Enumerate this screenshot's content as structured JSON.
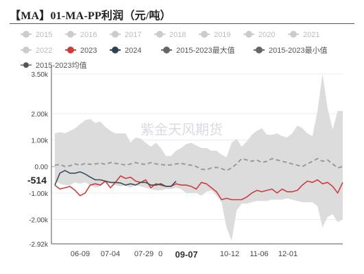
{
  "title": "【MA】01-MA-PP利润（元/吨）",
  "watermark": "紫金天风期货",
  "chart_data": {
    "type": "line",
    "title": "【MA】01-MA-PP利润（元/吨）",
    "ylim": [
      -2920,
      3600
    ],
    "yticks": [
      "3.50k",
      "2.00k",
      "1.00k",
      "0.00",
      "-1.00k",
      "-2.00k",
      "-2.92k"
    ],
    "xticks": [
      "06-09",
      "07-04",
      "07-29",
      "0",
      "09-07",
      "10-12",
      "11-06",
      "12-01"
    ],
    "highlight_x": "09-07",
    "current_value_label": "-514",
    "legend": [
      {
        "name": "2015",
        "color": "#cccccc",
        "marker": "circle",
        "active": false
      },
      {
        "name": "2016",
        "color": "#cccccc",
        "marker": "circle",
        "active": false
      },
      {
        "name": "2017",
        "color": "#cccccc",
        "marker": "circle",
        "active": false
      },
      {
        "name": "2018",
        "color": "#cccccc",
        "marker": "circle",
        "active": false
      },
      {
        "name": "2019",
        "color": "#cccccc",
        "marker": "circle",
        "active": false
      },
      {
        "name": "2020",
        "color": "#cccccc",
        "marker": "circle",
        "active": false
      },
      {
        "name": "2021",
        "color": "#cccccc",
        "marker": "circle",
        "active": false
      },
      {
        "name": "2022",
        "color": "#cccccc",
        "marker": "circle",
        "active": false
      },
      {
        "name": "2023",
        "color": "#d03a3a",
        "marker": "circle",
        "active": true
      },
      {
        "name": "2024",
        "color": "#2f4050",
        "marker": "circle",
        "active": true
      },
      {
        "name": "2015-2023最大值",
        "color": "#666666",
        "marker": "circle",
        "active": true
      },
      {
        "name": "2015-2023最小值",
        "color": "#666666",
        "marker": "circle",
        "active": true
      },
      {
        "name": "2015-2023均值",
        "color": "#888888",
        "marker": "dash",
        "active": true
      }
    ],
    "colors": {
      "s2023": "#d03a3a",
      "s2024": "#3d4a57",
      "band": "#dcdcdc",
      "mean": "#999999"
    },
    "series": [
      {
        "name": "2015-2023最大值",
        "values": [
          1250,
          1300,
          1250,
          1350,
          1450,
          1600,
          1750,
          1800,
          1650,
          1700,
          1500,
          1350,
          1250,
          1250,
          1250,
          900,
          1100,
          1050,
          900,
          750,
          900,
          700,
          400,
          400,
          600,
          700,
          850,
          900,
          800,
          700,
          700,
          600,
          600,
          450,
          350,
          900,
          1050,
          750,
          950,
          1200,
          1350,
          1450,
          1200,
          1200,
          1250,
          1150,
          1100,
          1250,
          1550,
          1450,
          1250,
          1150,
          2100,
          3500,
          2200,
          1400,
          2100,
          2100
        ]
      },
      {
        "name": "2015-2023最小值",
        "values": [
          -550,
          -650,
          -700,
          -700,
          -600,
          -650,
          -600,
          -700,
          -800,
          -750,
          -600,
          -650,
          -700,
          -750,
          -700,
          -800,
          -700,
          -750,
          -800,
          -850,
          -900,
          -900,
          -850,
          -850,
          -800,
          -850,
          -1000,
          -1000,
          -1000,
          -1100,
          -950,
          -900,
          -1100,
          -1350,
          -2300,
          -2800,
          -1650,
          -1400,
          -1400,
          -1350,
          -1300,
          -1300,
          -1300,
          -1250,
          -1250,
          -1250,
          -1200,
          -1250,
          -1300,
          -1350,
          -1350,
          -1350,
          -1500,
          -2300,
          -1900,
          -1800,
          -2100,
          -2000
        ]
      },
      {
        "name": "2015-2023均值",
        "values": [
          50,
          80,
          0,
          30,
          100,
          50,
          120,
          80,
          100,
          130,
          80,
          150,
          120,
          100,
          50,
          100,
          150,
          100,
          80,
          150,
          100,
          80,
          50,
          60,
          100,
          120,
          80,
          50,
          0,
          -100,
          -120,
          -50,
          -30,
          -80,
          -150,
          -50,
          100,
          300,
          250,
          200,
          250,
          150,
          200,
          300,
          250,
          200,
          150,
          100,
          50,
          0,
          100,
          200,
          300,
          200,
          250,
          100,
          -50,
          0
        ]
      },
      {
        "name": "2023",
        "values": [
          -700,
          -850,
          -800,
          -750,
          -900,
          -1100,
          -1000,
          -700,
          -650,
          -700,
          -550,
          -800,
          -600,
          -350,
          -450,
          -400,
          -550,
          -600,
          -500,
          -800,
          -650,
          -700,
          -750,
          -750,
          -650,
          -700,
          -700,
          -750,
          -850,
          -600,
          -650,
          -800,
          -950,
          -1250,
          -1200,
          -1250,
          -1250,
          -1250,
          -1150,
          -1000,
          -900,
          -950,
          -900,
          -850,
          -1000,
          -850,
          -950,
          -950,
          -900,
          -700,
          -550,
          -600,
          -500,
          -650,
          -600,
          -750,
          -1000,
          -600
        ]
      },
      {
        "name": "2024",
        "values": [
          -700,
          -250,
          -150,
          -250,
          -250,
          -200,
          -280,
          -400,
          -500,
          -500,
          -550,
          -600,
          -600,
          -620,
          -700,
          -650,
          -700,
          -600,
          -600,
          -700,
          -700,
          -650,
          -750,
          -750,
          -550
        ]
      }
    ]
  }
}
